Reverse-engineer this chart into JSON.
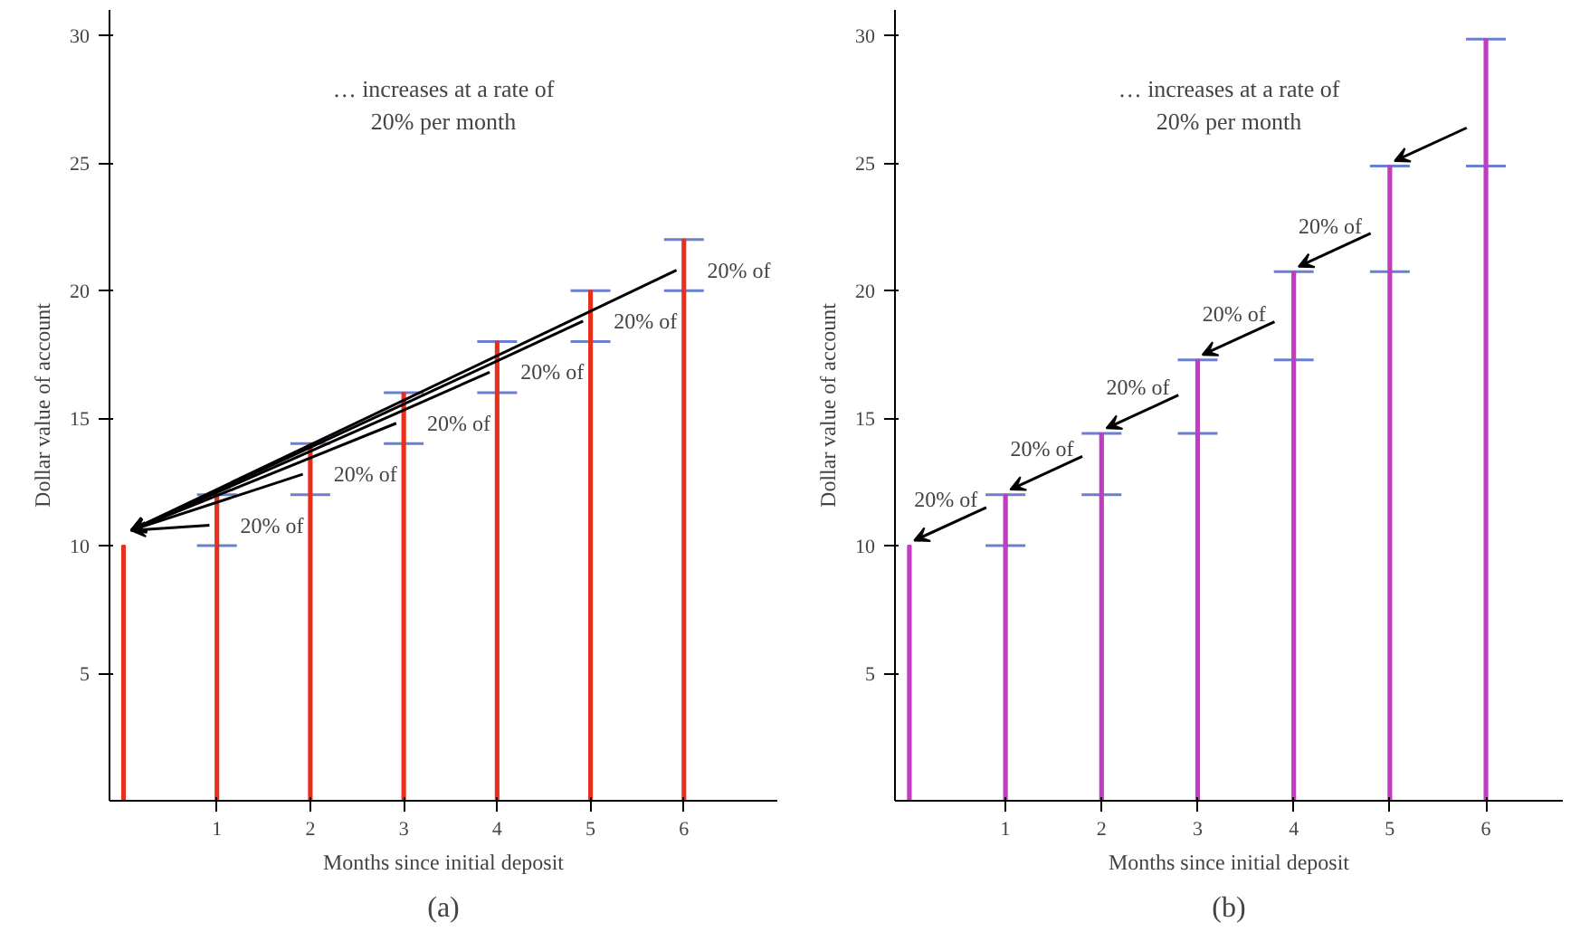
{
  "chart_data": [
    {
      "type": "bar",
      "x": [
        0,
        1,
        2,
        3,
        4,
        5,
        6
      ],
      "ylabel": "Dollar value of account",
      "xlabel": "Months since initial deposit",
      "series": [
        {
          "color": "#e8301c",
          "values": [
            10,
            12,
            14,
            16,
            18,
            20,
            22
          ],
          "errors": [
            null,
            [
              10,
              12
            ],
            [
              12,
              14
            ],
            [
              14,
              16
            ],
            [
              16,
              18
            ],
            [
              18,
              20
            ],
            [
              20,
              22
            ]
          ]
        }
      ],
      "xlim": [
        -0.15,
        7.0
      ],
      "ylim": [
        0,
        31
      ],
      "xticks": [
        1,
        2,
        3,
        4,
        5,
        6
      ],
      "yticks": [
        5,
        10,
        15,
        20,
        25,
        30
      ],
      "grid": false,
      "annotations": [
        "… increases at a rate of\n20% per month",
        "20% of",
        "20% of",
        "20% of",
        "20% of",
        "20% of",
        "20% of",
        "(a)"
      ]
    },
    {
      "type": "bar",
      "x": [
        0,
        1,
        2,
        3,
        4,
        5,
        6
      ],
      "ylabel": "Dollar value of account",
      "xlabel": "Months since initial deposit",
      "series": [
        {
          "color": "#c23cc2",
          "values": [
            10,
            12,
            14.4,
            17.28,
            20.74,
            24.88,
            29.86
          ],
          "errors": [
            null,
            [
              10,
              12
            ],
            [
              12,
              14.4
            ],
            [
              14.4,
              17.28
            ],
            [
              17.28,
              20.74
            ],
            [
              20.74,
              24.88
            ],
            [
              24.88,
              29.86
            ]
          ]
        }
      ],
      "xlim": [
        -0.15,
        6.8
      ],
      "ylim": [
        0,
        31
      ],
      "xticks": [
        1,
        2,
        3,
        4,
        5,
        6
      ],
      "yticks": [
        5,
        10,
        15,
        20,
        25,
        30
      ],
      "grid": false,
      "annotations": [
        "… increases at a rate of\n20% per month",
        "20% of",
        "20% of",
        "20% of",
        "20% of",
        "20% of",
        "(b)"
      ]
    }
  ]
}
